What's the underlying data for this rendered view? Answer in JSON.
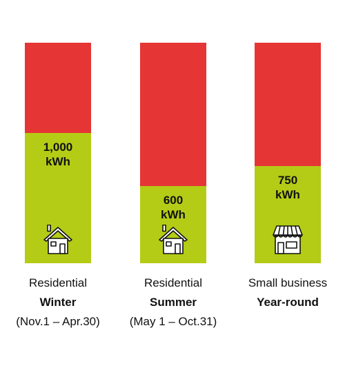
{
  "chart_data": {
    "type": "bar",
    "stacked": true,
    "categories": [
      {
        "line1": "Residential",
        "line2": "Winter",
        "line3": "(Nov.1 – Apr.30)",
        "icon": "house-icon"
      },
      {
        "line1": "Residential",
        "line2": "Summer",
        "line3": "(May 1 – Oct.31)",
        "icon": "house-icon"
      },
      {
        "line1": "Small business",
        "line2": "Year-round",
        "line3": "",
        "icon": "shop-icon"
      }
    ],
    "values": [
      1000,
      600,
      750
    ],
    "value_labels": [
      [
        "1,000",
        "kWh"
      ],
      [
        "600",
        "kWh"
      ],
      [
        "750",
        "kWh"
      ]
    ],
    "total_fraction": [
      0.59,
      0.35,
      0.44
    ],
    "colors": {
      "lower": "#b4cc16",
      "upper": "#e63535"
    },
    "title": "",
    "xlabel": "",
    "ylabel": ""
  }
}
